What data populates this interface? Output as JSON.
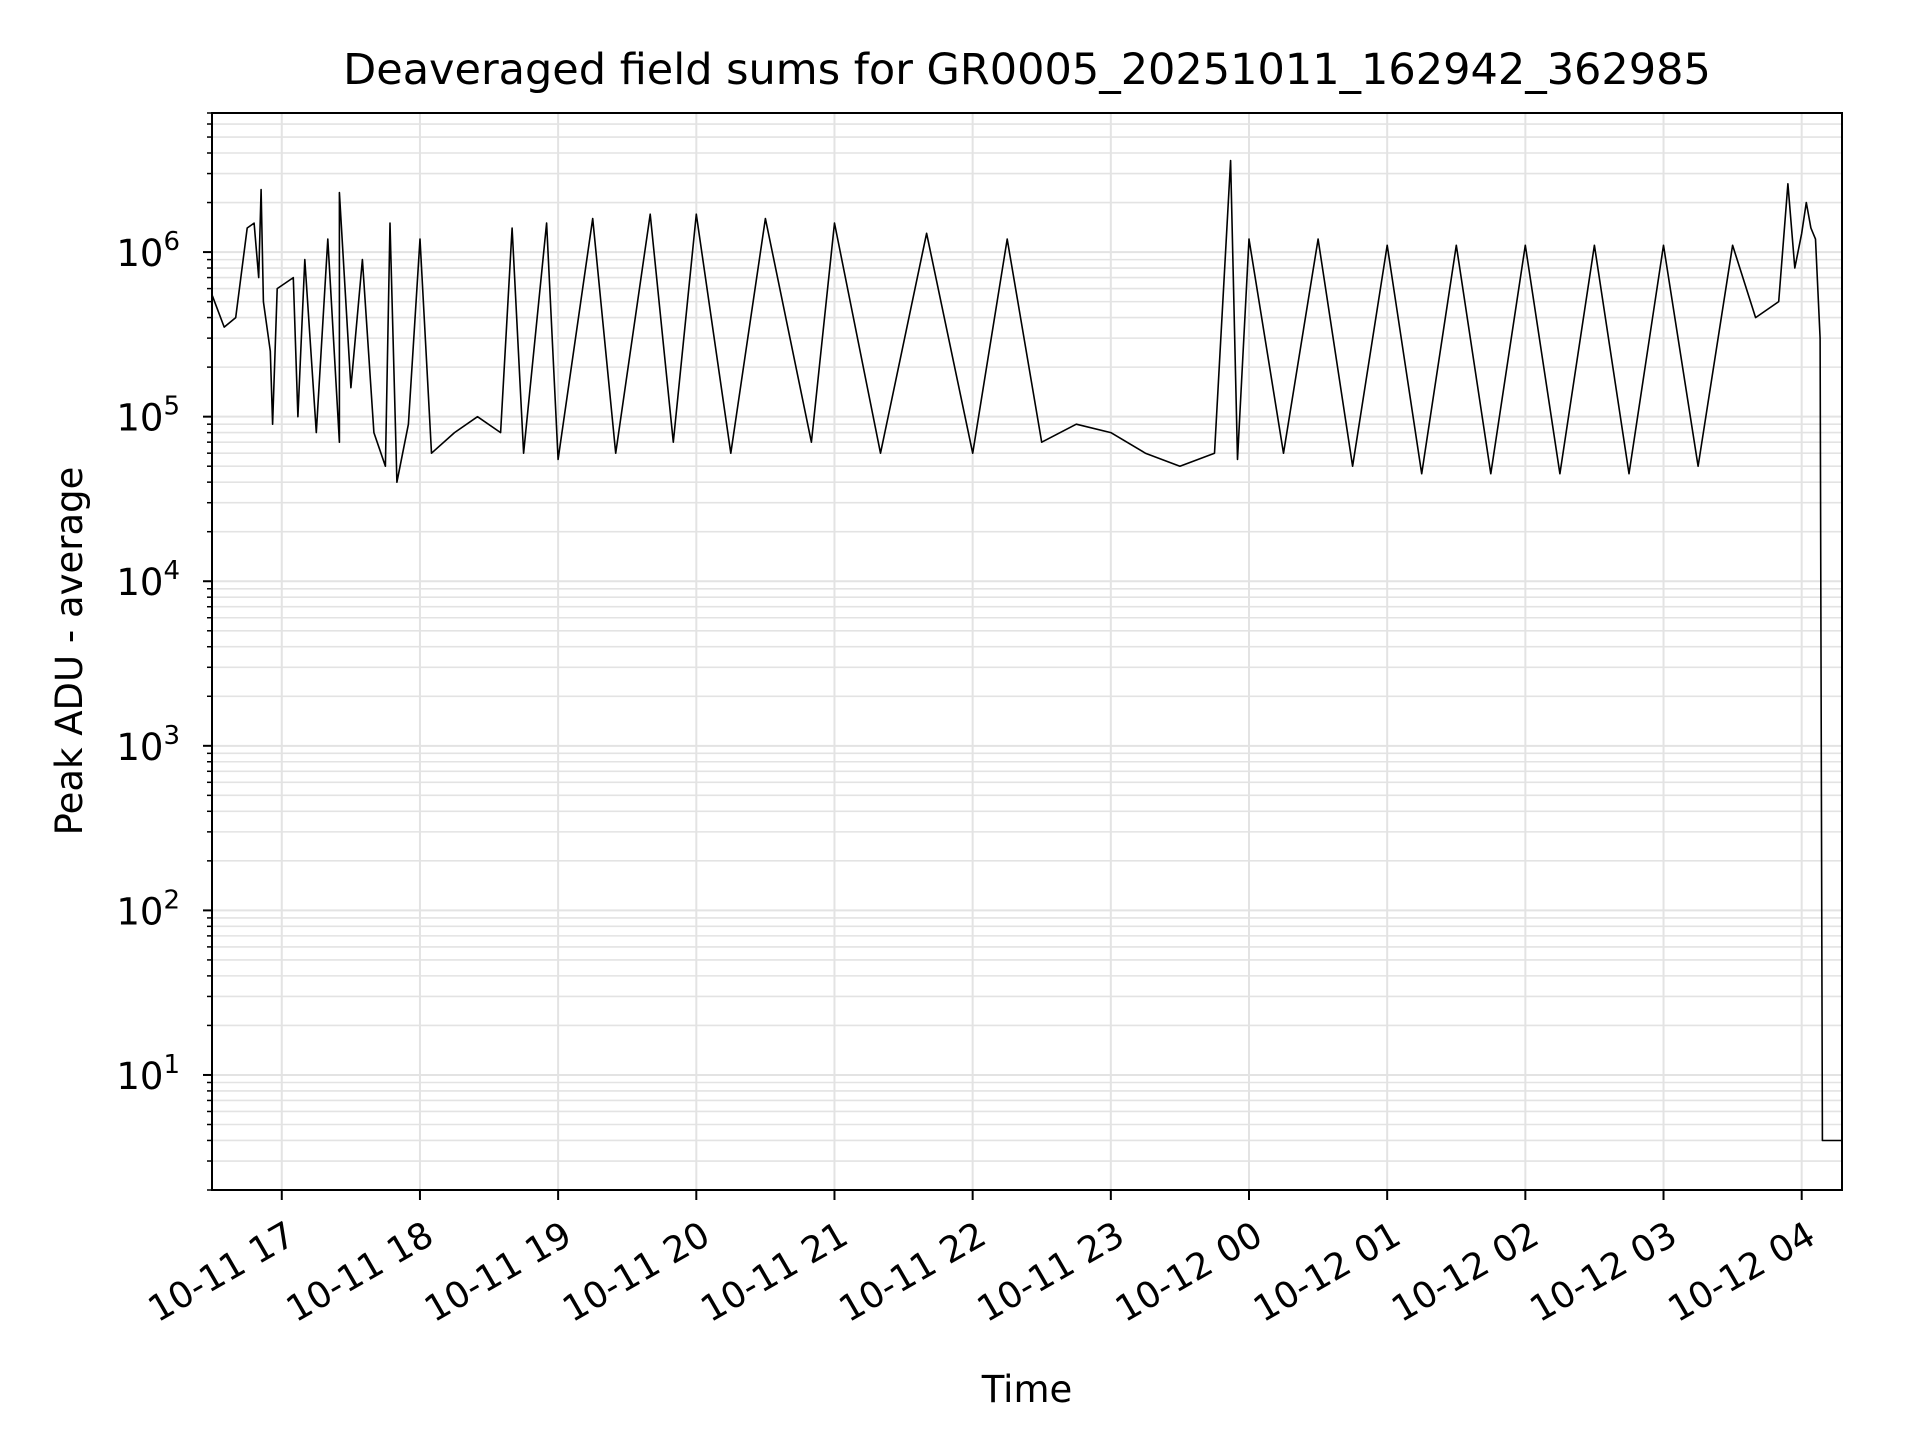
{
  "chart_data": {
    "type": "line",
    "title": "Deaveraged field sums for GR0005_20251011_162942_362985",
    "xlabel": "Time",
    "ylabel": "Peak ADU - average",
    "yscale": "log",
    "ylim": [
      2,
      7000000
    ],
    "xlim": [
      "2025-10-11 16:29:42",
      "2025-10-12 04:17:30"
    ],
    "grid": true,
    "line_color": "#000000",
    "x_ticks": [
      {
        "t": "2025-10-11 17:00",
        "label": "10-11 17"
      },
      {
        "t": "2025-10-11 18:00",
        "label": "10-11 18"
      },
      {
        "t": "2025-10-11 19:00",
        "label": "10-11 19"
      },
      {
        "t": "2025-10-11 20:00",
        "label": "10-11 20"
      },
      {
        "t": "2025-10-11 21:00",
        "label": "10-11 21"
      },
      {
        "t": "2025-10-11 22:00",
        "label": "10-11 22"
      },
      {
        "t": "2025-10-11 23:00",
        "label": "10-11 23"
      },
      {
        "t": "2025-10-12 00:00",
        "label": "10-12 00"
      },
      {
        "t": "2025-10-12 01:00",
        "label": "10-12 01"
      },
      {
        "t": "2025-10-12 02:00",
        "label": "10-12 02"
      },
      {
        "t": "2025-10-12 03:00",
        "label": "10-12 03"
      },
      {
        "t": "2025-10-12 04:00",
        "label": "10-12 04"
      }
    ],
    "y_ticks": [
      {
        "value": 10,
        "label": "10",
        "exp": "1"
      },
      {
        "value": 100,
        "label": "10",
        "exp": "2"
      },
      {
        "value": 1000,
        "label": "10",
        "exp": "3"
      },
      {
        "value": 10000,
        "label": "10",
        "exp": "4"
      },
      {
        "value": 100000,
        "label": "10",
        "exp": "5"
      },
      {
        "value": 1000000,
        "label": "10",
        "exp": "6"
      }
    ],
    "series": [
      {
        "points": [
          [
            "2025-10-11 16:29:42",
            550000
          ],
          [
            "2025-10-11 16:35",
            350000
          ],
          [
            "2025-10-11 16:40",
            400000
          ],
          [
            "2025-10-11 16:45",
            1400000
          ],
          [
            "2025-10-11 16:48",
            1500000
          ],
          [
            "2025-10-11 16:50",
            700000
          ],
          [
            "2025-10-11 16:51",
            2400000
          ],
          [
            "2025-10-11 16:52",
            500000
          ],
          [
            "2025-10-11 16:55",
            250000
          ],
          [
            "2025-10-11 16:56",
            90000
          ],
          [
            "2025-10-11 16:58",
            600000
          ],
          [
            "2025-10-11 17:05",
            700000
          ],
          [
            "2025-10-11 17:07",
            100000
          ],
          [
            "2025-10-11 17:10",
            900000
          ],
          [
            "2025-10-11 17:15",
            80000
          ],
          [
            "2025-10-11 17:20",
            1200000
          ],
          [
            "2025-10-11 17:25",
            70000
          ],
          [
            "2025-10-11 17:25",
            2300000
          ],
          [
            "2025-10-11 17:30",
            150000
          ],
          [
            "2025-10-11 17:35",
            900000
          ],
          [
            "2025-10-11 17:40",
            80000
          ],
          [
            "2025-10-11 17:45",
            50000
          ],
          [
            "2025-10-11 17:47",
            1500000
          ],
          [
            "2025-10-11 17:50",
            40000
          ],
          [
            "2025-10-11 17:55",
            90000
          ],
          [
            "2025-10-11 18:00",
            1200000
          ],
          [
            "2025-10-11 18:05",
            60000
          ],
          [
            "2025-10-11 18:15",
            80000
          ],
          [
            "2025-10-11 18:25",
            100000
          ],
          [
            "2025-10-11 18:35",
            80000
          ],
          [
            "2025-10-11 18:40",
            1400000
          ],
          [
            "2025-10-11 18:45",
            60000
          ],
          [
            "2025-10-11 18:55",
            1500000
          ],
          [
            "2025-10-11 19:00",
            55000
          ],
          [
            "2025-10-11 19:15",
            1600000
          ],
          [
            "2025-10-11 19:25",
            60000
          ],
          [
            "2025-10-11 19:40",
            1700000
          ],
          [
            "2025-10-11 19:50",
            70000
          ],
          [
            "2025-10-11 20:00",
            1700000
          ],
          [
            "2025-10-11 20:15",
            60000
          ],
          [
            "2025-10-11 20:30",
            1600000
          ],
          [
            "2025-10-11 20:50",
            70000
          ],
          [
            "2025-10-11 21:00",
            1500000
          ],
          [
            "2025-10-11 21:20",
            60000
          ],
          [
            "2025-10-11 21:40",
            1300000
          ],
          [
            "2025-10-11 22:00",
            60000
          ],
          [
            "2025-10-11 22:15",
            1200000
          ],
          [
            "2025-10-11 22:30",
            70000
          ],
          [
            "2025-10-11 22:45",
            90000
          ],
          [
            "2025-10-11 23:00",
            80000
          ],
          [
            "2025-10-11 23:15",
            60000
          ],
          [
            "2025-10-11 23:30",
            50000
          ],
          [
            "2025-10-11 23:45",
            60000
          ],
          [
            "2025-10-11 23:52",
            3600000
          ],
          [
            "2025-10-11 23:55",
            55000
          ],
          [
            "2025-10-12 00:00",
            1200000
          ],
          [
            "2025-10-12 00:15",
            60000
          ],
          [
            "2025-10-12 00:30",
            1200000
          ],
          [
            "2025-10-12 00:45",
            50000
          ],
          [
            "2025-10-12 01:00",
            1100000
          ],
          [
            "2025-10-12 01:15",
            45000
          ],
          [
            "2025-10-12 01:30",
            1100000
          ],
          [
            "2025-10-12 01:45",
            45000
          ],
          [
            "2025-10-12 02:00",
            1100000
          ],
          [
            "2025-10-12 02:15",
            45000
          ],
          [
            "2025-10-12 02:30",
            1100000
          ],
          [
            "2025-10-12 02:45",
            45000
          ],
          [
            "2025-10-12 03:00",
            1100000
          ],
          [
            "2025-10-12 03:15",
            50000
          ],
          [
            "2025-10-12 03:30",
            1100000
          ],
          [
            "2025-10-12 03:40",
            400000
          ],
          [
            "2025-10-12 03:50",
            500000
          ],
          [
            "2025-10-12 03:54",
            2600000
          ],
          [
            "2025-10-12 03:57",
            800000
          ],
          [
            "2025-10-12 04:00",
            1300000
          ],
          [
            "2025-10-12 04:02",
            2000000
          ],
          [
            "2025-10-12 04:04",
            1400000
          ],
          [
            "2025-10-12 04:06",
            1200000
          ],
          [
            "2025-10-12 04:08",
            300000
          ],
          [
            "2025-10-12 04:09",
            4
          ],
          [
            "2025-10-12 04:17:30",
            4
          ]
        ]
      }
    ]
  }
}
